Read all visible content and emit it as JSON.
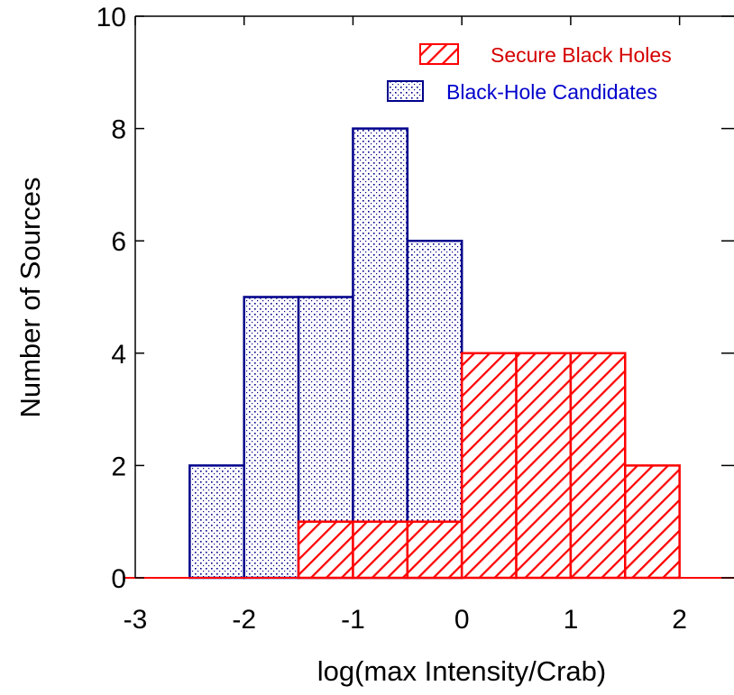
{
  "chart_data": {
    "type": "bar",
    "xlabel": "log(max Intensity/Crab)",
    "ylabel": "Number of Sources",
    "xlim": [
      -3,
      2.5
    ],
    "ylim": [
      0,
      10
    ],
    "x_ticks": [
      -3,
      -2,
      -1,
      0,
      1,
      2
    ],
    "y_ticks": [
      0,
      2,
      4,
      6,
      8,
      10
    ],
    "x_tick_labels": [
      "-3",
      "-2",
      "-1",
      "0",
      "1",
      "2"
    ],
    "y_tick_labels": [
      "0",
      "2",
      "4",
      "6",
      "8",
      "10"
    ],
    "bin_width": 0.5,
    "grid": false,
    "legend_position": "top-right",
    "series": [
      {
        "name": "Black-Hole Candidates",
        "color": "#00008b",
        "pattern": "dotted-grid",
        "bins": [
          {
            "x0": -2.5,
            "x1": -2.0,
            "count": 2
          },
          {
            "x0": -2.0,
            "x1": -1.5,
            "count": 5
          },
          {
            "x0": -1.5,
            "x1": -1.0,
            "count": 5
          },
          {
            "x0": -1.0,
            "x1": -0.5,
            "count": 8
          },
          {
            "x0": -0.5,
            "x1": 0.0,
            "count": 6
          }
        ]
      },
      {
        "name": "Secure Black Holes",
        "color": "#ff0000",
        "pattern": "diagonal-hatch",
        "bins": [
          {
            "x0": -1.5,
            "x1": -1.0,
            "count": 1
          },
          {
            "x0": -1.0,
            "x1": -0.5,
            "count": 1
          },
          {
            "x0": -0.5,
            "x1": 0.0,
            "count": 1
          },
          {
            "x0": 0.0,
            "x1": 0.5,
            "count": 4
          },
          {
            "x0": 0.5,
            "x1": 1.0,
            "count": 4
          },
          {
            "x0": 1.0,
            "x1": 1.5,
            "count": 4
          },
          {
            "x0": 1.5,
            "x1": 2.0,
            "count": 2
          }
        ]
      }
    ]
  }
}
